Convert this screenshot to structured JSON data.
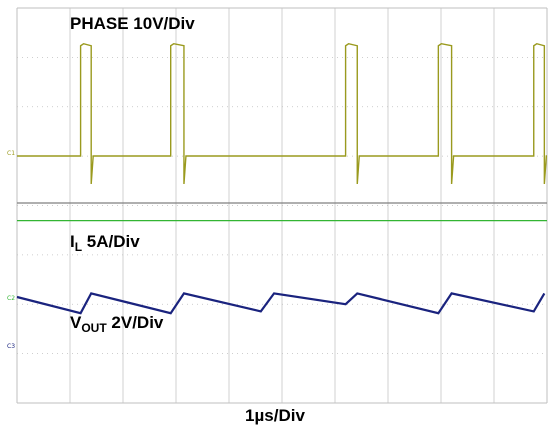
{
  "labels": {
    "phase": "PHASE 10V/Div",
    "il_main": "I",
    "il_sub": "L",
    "il_rest": " 5A/Div",
    "vout_main": "V",
    "vout_sub": "OUT",
    "vout_rest": " 2V/Div",
    "time": "1µs/Div"
  },
  "channel_markers": [
    "C1",
    "C2",
    "C3"
  ],
  "colors": {
    "phase": "#9a9a1e",
    "il": "#33b533",
    "vout": "#1a237e",
    "grid": "#bfbfbf",
    "divider": "#7f7f7f"
  },
  "chart_data": {
    "type": "line",
    "xlabel": "1µs/Div",
    "x_divisions": 10,
    "x_unit": "µs",
    "xlim": [
      0,
      10
    ],
    "series": [
      {
        "name": "PHASE 10V/Div",
        "scale_per_div": "10V",
        "low_div": 0,
        "high_div": 4.5,
        "pulses": [
          [
            1.2,
            1.4
          ],
          [
            2.9,
            3.15
          ],
          [
            6.2,
            6.42
          ],
          [
            7.95,
            8.2
          ],
          [
            9.75,
            9.95
          ]
        ],
        "ringing": [
          [
            1.9,
            -0.2
          ],
          [
            4.9,
            -0.3
          ],
          [
            8.3,
            -0.25
          ]
        ]
      },
      {
        "name": "Iₗ 5A/Div",
        "scale_per_div": "5A",
        "level_div": 0
      },
      {
        "name": "Vₒᵤₜ 2V/Div",
        "scale_per_div": "2V",
        "ramp_peaks": [
          [
            0,
            0.0
          ],
          [
            1.2,
            -0.45
          ],
          [
            1.4,
            0.1
          ],
          [
            2.9,
            -0.45
          ],
          [
            3.15,
            0.1
          ],
          [
            4.6,
            -0.4
          ],
          [
            4.85,
            0.1
          ],
          [
            6.2,
            -0.2
          ],
          [
            6.42,
            0.1
          ],
          [
            7.95,
            -0.45
          ],
          [
            8.2,
            0.1
          ],
          [
            9.75,
            -0.4
          ],
          [
            9.95,
            0.1
          ]
        ]
      }
    ]
  }
}
